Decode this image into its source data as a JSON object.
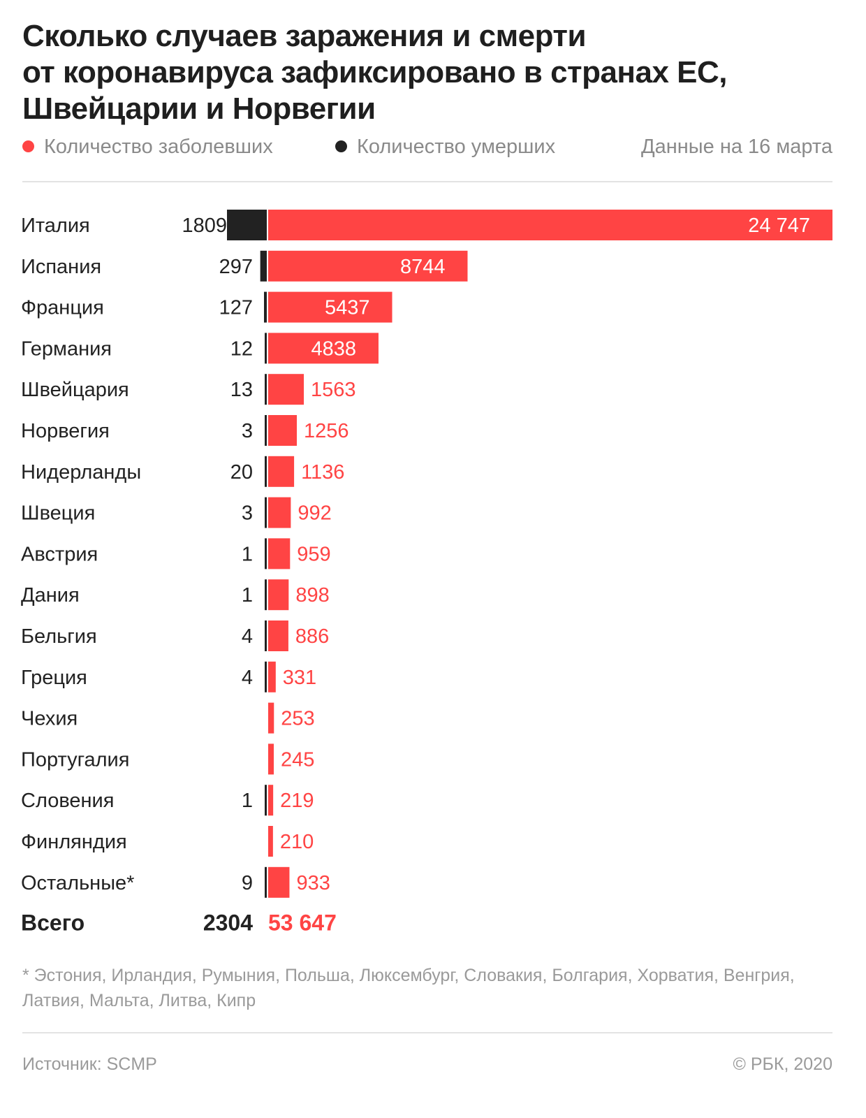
{
  "title": {
    "line1": "Сколько случаев заражения и смерти",
    "line2": "от коронавируса зафиксировано в странах ЕС,",
    "line3": "Швейцарии и Норвегии"
  },
  "legend": {
    "cases_label": "Количество заболевших",
    "deaths_label": "Количество умерших",
    "date_note": "Данные на 16 марта"
  },
  "colors": {
    "cases": "#ff4444",
    "deaths": "#222222",
    "label_light": "#ffffff"
  },
  "chart_data": {
    "type": "bar",
    "orientation": "horizontal",
    "stacked_direction": "diverging",
    "categories": [
      "Италия",
      "Испания",
      "Франция",
      "Германия",
      "Швейцария",
      "Норвегия",
      "Нидерланды",
      "Швеция",
      "Австрия",
      "Дания",
      "Бельгия",
      "Греция",
      "Чехия",
      "Португалия",
      "Словения",
      "Финляндия",
      "Остальные*"
    ],
    "series": [
      {
        "name": "Количество умерших",
        "values": [
          1809,
          297,
          127,
          12,
          13,
          3,
          20,
          3,
          1,
          1,
          4,
          4,
          null,
          null,
          1,
          null,
          9
        ],
        "labels": [
          "1809",
          "297",
          "127",
          "12",
          "13",
          "3",
          "20",
          "3",
          "1",
          "1",
          "4",
          "4",
          "",
          "",
          "1",
          "",
          "9"
        ]
      },
      {
        "name": "Количество заболевших",
        "values": [
          24747,
          8744,
          5437,
          4838,
          1563,
          1256,
          1136,
          992,
          959,
          898,
          886,
          331,
          253,
          245,
          219,
          210,
          933
        ],
        "labels": [
          "24 747",
          "8744",
          "5437",
          "4838",
          "1563",
          "1256",
          "1136",
          "992",
          "959",
          "898",
          "886",
          "331",
          "253",
          "245",
          "219",
          "210",
          "933"
        ]
      }
    ],
    "total": {
      "label": "Всего",
      "deaths": "2304",
      "cases": "53 647"
    }
  },
  "footnote": "* Эстония, Ирландия, Румыния, Польша, Люксембург, Словакия, Болгария, Хорватия, Венгрия, Латвия, Мальта, Литва, Кипр",
  "footer": {
    "source": "Источник: SCMP",
    "copyright": "© РБК, 2020"
  }
}
